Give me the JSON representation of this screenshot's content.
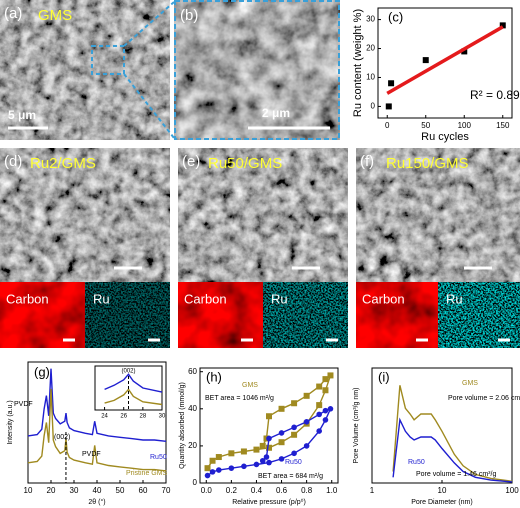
{
  "panels": [
    {
      "label": "(a)",
      "title": "GMS",
      "scale_bar": "5 μm"
    },
    {
      "label": "(b)",
      "scale_bar": "2 μm"
    },
    {
      "label": "(d)",
      "title": "Ru2/GMS",
      "maps": [
        "Carbon",
        "Ru"
      ]
    },
    {
      "label": "(e)",
      "title": "Ru50/GMS",
      "maps": [
        "Carbon",
        "Ru"
      ]
    },
    {
      "label": "(f)",
      "title": "Ru150/GMS",
      "maps": [
        "Carbon",
        "Ru"
      ]
    }
  ],
  "chart_data": [
    {
      "type": "scatter",
      "label": "(c)",
      "x_label": "Ru cycles",
      "y_label": "Ru content (weight %)",
      "x": [
        2,
        5,
        50,
        100,
        150
      ],
      "series": [
        {
          "color": "#000000",
          "marker": "square",
          "line": false,
          "values": [
            0,
            8,
            16,
            19,
            28
          ]
        }
      ],
      "fit": {
        "color": "#e41a1c",
        "x": [
          0,
          150
        ],
        "values": [
          4.5,
          27.5
        ]
      },
      "annotations": [
        "R² = 0.89"
      ],
      "xlim": [
        -12,
        162
      ],
      "xticks": [
        0,
        50,
        100,
        150
      ],
      "ylim": [
        -4,
        34
      ],
      "yticks": [
        0,
        10,
        20,
        30
      ]
    },
    {
      "type": "line",
      "label": "(g)",
      "x_label": "2θ (°)",
      "y_label": "Intensity (a.u.)",
      "x": [
        10,
        14,
        16,
        17,
        18,
        19,
        20,
        21,
        22,
        24,
        26,
        26.5,
        27,
        28,
        30,
        35,
        38,
        39,
        40,
        45,
        50,
        55,
        60,
        65,
        70
      ],
      "series": [
        {
          "name": "Ru50",
          "color": "#1f1fd0",
          "values": [
            4.5,
            4.6,
            5.0,
            6.5,
            7.5,
            6.0,
            9.5,
            6.2,
            5.8,
            5.4,
            5.6,
            6.2,
            5.5,
            5.1,
            4.9,
            4.7,
            4.6,
            5.6,
            4.7,
            4.5,
            4.4,
            4.3,
            4.2,
            4.2,
            4.1
          ]
        },
        {
          "name": "Pristine GMS",
          "color": "#a08a20",
          "values": [
            2.5,
            2.6,
            3.0,
            4.5,
            5.5,
            4.0,
            8.0,
            4.2,
            3.7,
            3.2,
            3.4,
            4.3,
            3.3,
            2.9,
            2.7,
            2.5,
            2.4,
            3.8,
            2.5,
            2.3,
            2.2,
            2.1,
            2.0,
            2.0,
            1.9
          ]
        }
      ],
      "annotations": [
        "PVDF",
        "(002)",
        "PVDF"
      ],
      "xlim": [
        10,
        70
      ],
      "xticks": [
        10,
        20,
        30,
        40,
        50,
        60,
        70
      ],
      "ylim": [
        1,
        10
      ],
      "inset": {
        "x": [
          24,
          25,
          26,
          26.5,
          27,
          28,
          30
        ],
        "series": [
          {
            "color": "#1f1fd0",
            "values": [
              1.5,
              1.8,
              2.2,
              2.6,
              2.1,
              1.6,
              1.3
            ]
          },
          {
            "color": "#a08a20",
            "values": [
              0.5,
              0.7,
              1.1,
              1.5,
              1.0,
              0.6,
              0.4
            ]
          }
        ],
        "annotations": [
          "(002)"
        ],
        "xlim": [
          23,
          30
        ],
        "xticks": [
          24,
          26,
          28,
          30
        ],
        "ylim": [
          0,
          3.2
        ]
      }
    },
    {
      "type": "line",
      "label": "(h)",
      "x_label": "Relative pressure (p/p⁰)",
      "y_label": "Quantity absorbed (mmol/g)",
      "series": [
        {
          "name": "GMS",
          "color": "#a08a20",
          "marker": "square",
          "x": [
            0.01,
            0.05,
            0.1,
            0.2,
            0.3,
            0.4,
            0.5,
            0.6,
            0.7,
            0.8,
            0.9,
            0.95,
            0.99,
            0.95,
            0.9,
            0.8,
            0.7,
            0.6,
            0.5,
            0.48,
            0.45
          ],
          "values": [
            8,
            12,
            14,
            16,
            17,
            18,
            19,
            22,
            26,
            32,
            42,
            50,
            58,
            56,
            52,
            47,
            43,
            40,
            36,
            24,
            20
          ]
        },
        {
          "name": "Ru50",
          "color": "#1f1fd0",
          "marker": "circle",
          "x": [
            0.01,
            0.05,
            0.1,
            0.2,
            0.3,
            0.4,
            0.5,
            0.6,
            0.7,
            0.8,
            0.9,
            0.95,
            0.99,
            0.95,
            0.9,
            0.8,
            0.7,
            0.6,
            0.5,
            0.48,
            0.45
          ],
          "values": [
            4,
            6,
            7,
            8,
            9,
            10,
            11,
            13,
            16,
            20,
            28,
            34,
            40,
            39,
            37,
            33,
            30,
            27,
            24,
            14,
            12
          ]
        }
      ],
      "annotations": [
        "BET area = 1046 m²/g",
        "BET area = 684 m²/g"
      ],
      "xlim": [
        -0.05,
        1.05
      ],
      "xticks": [
        {
          "value": 0,
          "label": "0.0"
        },
        0.2,
        0.4,
        0.6,
        0.8,
        {
          "value": 1,
          "label": "1.0"
        }
      ],
      "ylim": [
        0,
        62
      ],
      "yticks": [
        0,
        20,
        40,
        60
      ]
    },
    {
      "type": "line",
      "label": "(i)",
      "x_label": "Pore Diameter (nm)",
      "y_label": "Pore Volume (cm³/g nm)",
      "xlog": true,
      "x": [
        2,
        2.5,
        3,
        3.5,
        4,
        5,
        6,
        7,
        8,
        10,
        15,
        20,
        30,
        50,
        100
      ],
      "series": [
        {
          "name": "GMS",
          "color": "#a08a20",
          "values": [
            0.02,
            0.17,
            0.13,
            0.12,
            0.11,
            0.12,
            0.12,
            0.12,
            0.11,
            0.09,
            0.05,
            0.03,
            0.015,
            0.008,
            0.003
          ]
        },
        {
          "name": "Ru50",
          "color": "#1f1fd0",
          "values": [
            0.01,
            0.11,
            0.09,
            0.08,
            0.075,
            0.08,
            0.08,
            0.08,
            0.075,
            0.06,
            0.035,
            0.02,
            0.01,
            0.005,
            0.002
          ]
        }
      ],
      "annotations": [
        "Pore volume = 2.06 cm³/g",
        "Pore volume = 1.46 cm³/g"
      ],
      "xlim": [
        1,
        100
      ],
      "xticks": [
        1,
        10,
        100
      ],
      "ylim": [
        0,
        0.2
      ]
    }
  ]
}
